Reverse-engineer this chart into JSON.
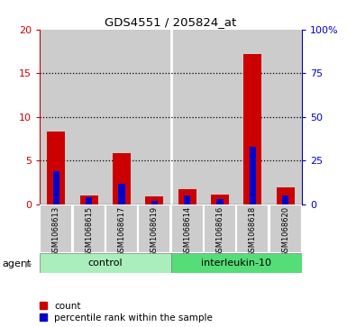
{
  "title": "GDS4551 / 205824_at",
  "samples": [
    "GSM1068613",
    "GSM1068615",
    "GSM1068617",
    "GSM1068619",
    "GSM1068614",
    "GSM1068616",
    "GSM1068618",
    "GSM1068620"
  ],
  "red_values": [
    8.3,
    1.0,
    5.9,
    0.9,
    1.7,
    1.1,
    17.2,
    1.9
  ],
  "blue_values": [
    19,
    4,
    12,
    2,
    5,
    3,
    33,
    5
  ],
  "ylim_left": [
    0,
    20
  ],
  "ylim_right": [
    0,
    100
  ],
  "yticks_left": [
    0,
    5,
    10,
    15,
    20
  ],
  "yticks_right": [
    0,
    25,
    50,
    75,
    100
  ],
  "yticklabels_right": [
    "0",
    "25",
    "50",
    "75",
    "100%"
  ],
  "control_label": "control",
  "treatment_label": "interleukin-10",
  "agent_label": "agent",
  "legend_count": "count",
  "legend_percentile": "percentile rank within the sample",
  "red_color": "#cc0000",
  "blue_color": "#0000cc",
  "control_bg": "#aaeebb",
  "treatment_bg": "#55dd77",
  "bar_bg": "#cccccc",
  "white": "#ffffff"
}
